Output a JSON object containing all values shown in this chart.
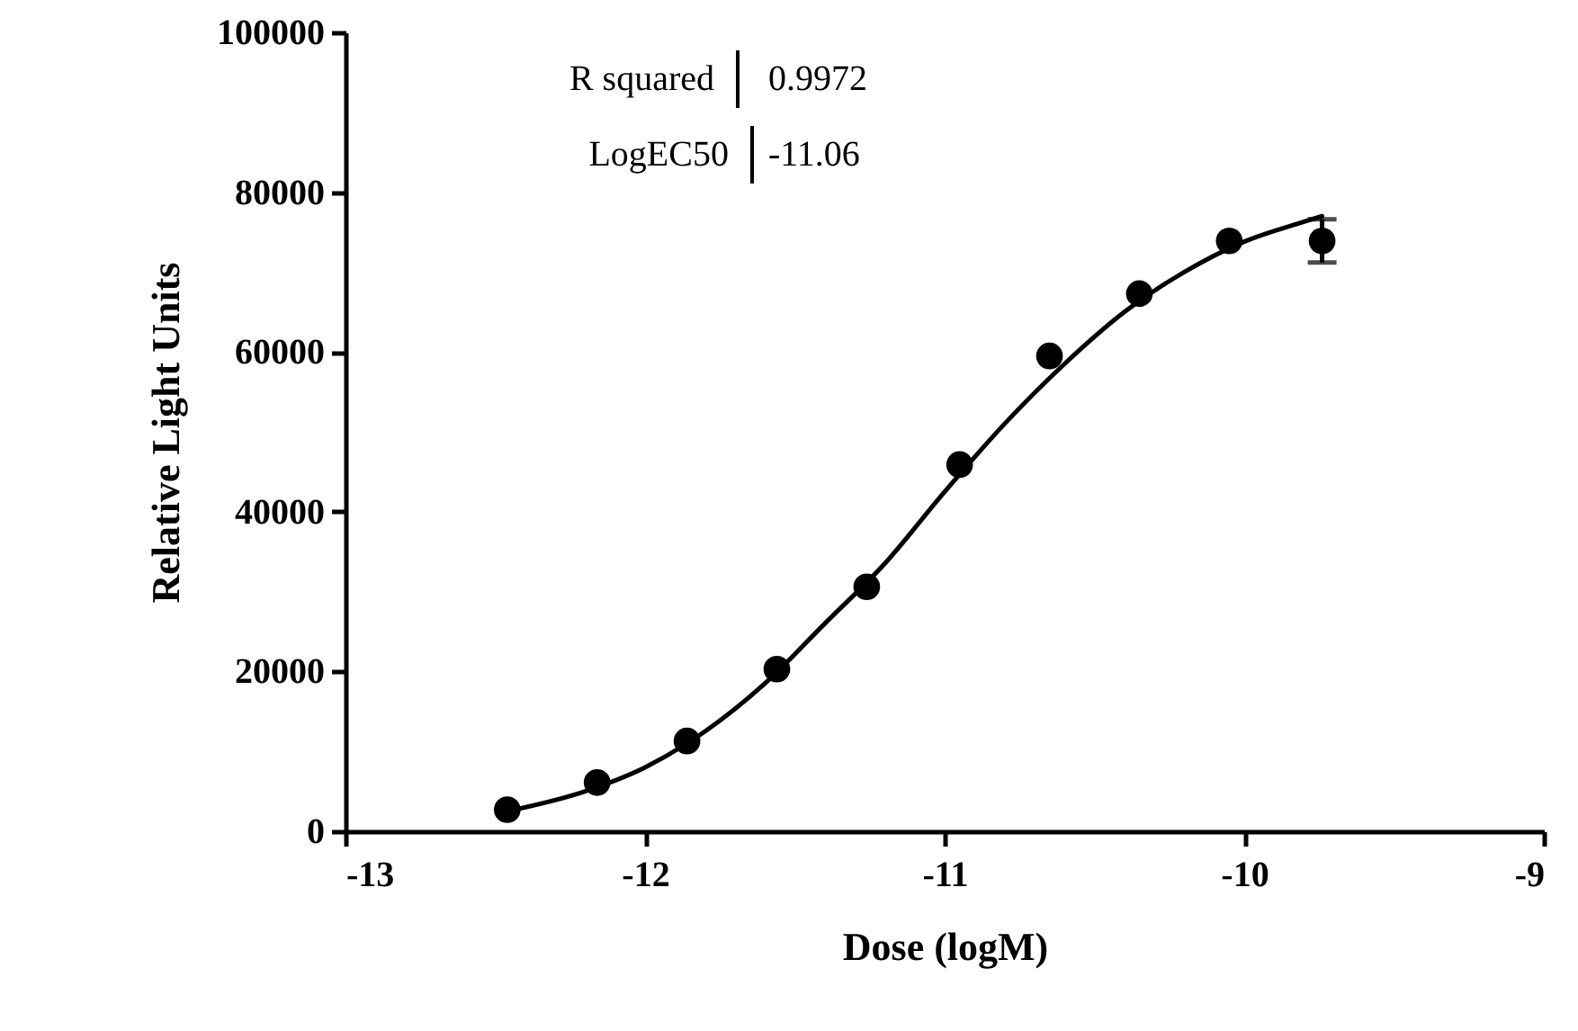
{
  "chart_data": {
    "type": "scatter",
    "xlabel": "Dose (logM)",
    "ylabel": "Relative Light Units",
    "xlim": [
      -13,
      -9
    ],
    "xticks": [
      -13,
      -12,
      -11,
      -10,
      -9
    ],
    "ylim": [
      0,
      100000
    ],
    "yticks": [
      0,
      20000,
      40000,
      60000,
      80000,
      100000
    ],
    "marker": "circle",
    "annotations": [
      "R squared",
      "0.9972",
      "LogEC50",
      "-11.06"
    ],
    "series": [
      {
        "color": "#000000",
        "x": [
          -12.46,
          -12.16,
          -11.86,
          -11.56,
          -11.26,
          -10.95,
          -10.65,
          -10.35,
          -10.05,
          -9.74
        ],
        "values": [
          2700,
          6100,
          11300,
          20300,
          30600,
          45900,
          59500,
          67300,
          73900,
          73900
        ],
        "errors": [
          null,
          null,
          null,
          null,
          null,
          null,
          null,
          null,
          null,
          2700
        ]
      },
      {
        "type": "line",
        "color": "#000000",
        "marker": "none",
        "x": [
          -12.46,
          -12.2,
          -12,
          -11.8,
          -11.6,
          -11.4,
          -11.2,
          -11,
          -10.8,
          -10.6,
          -10.4,
          -10.2,
          -10,
          -9.8,
          -9.74
        ],
        "values": [
          2500,
          5000,
          8000,
          12500,
          18500,
          26000,
          33500,
          42500,
          51000,
          58500,
          65000,
          70000,
          73800,
          76300,
          77000
        ]
      }
    ]
  }
}
